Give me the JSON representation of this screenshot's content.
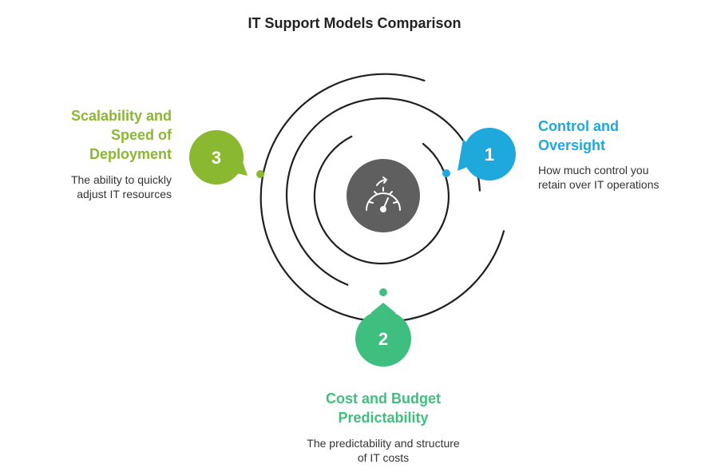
{
  "title": "IT Support Models Comparison",
  "center": {
    "icon": "speedometer-icon",
    "color": "#5f5f5f"
  },
  "items": [
    {
      "number": "1",
      "heading_lines": [
        "Control and",
        "Oversight"
      ],
      "description_lines": [
        "How much control you",
        "retain over IT operations"
      ],
      "color": "#1ea8dc"
    },
    {
      "number": "2",
      "heading_lines": [
        "Cost and Budget",
        "Predictability"
      ],
      "description_lines": [
        "The predictability and structure",
        "of IT costs"
      ],
      "color": "#3fbf7f"
    },
    {
      "number": "3",
      "heading_lines": [
        "Scalability and",
        "Speed of",
        "Deployment"
      ],
      "description_lines": [
        "The ability to quickly",
        "adjust IT resources"
      ],
      "color": "#8ab830"
    }
  ]
}
